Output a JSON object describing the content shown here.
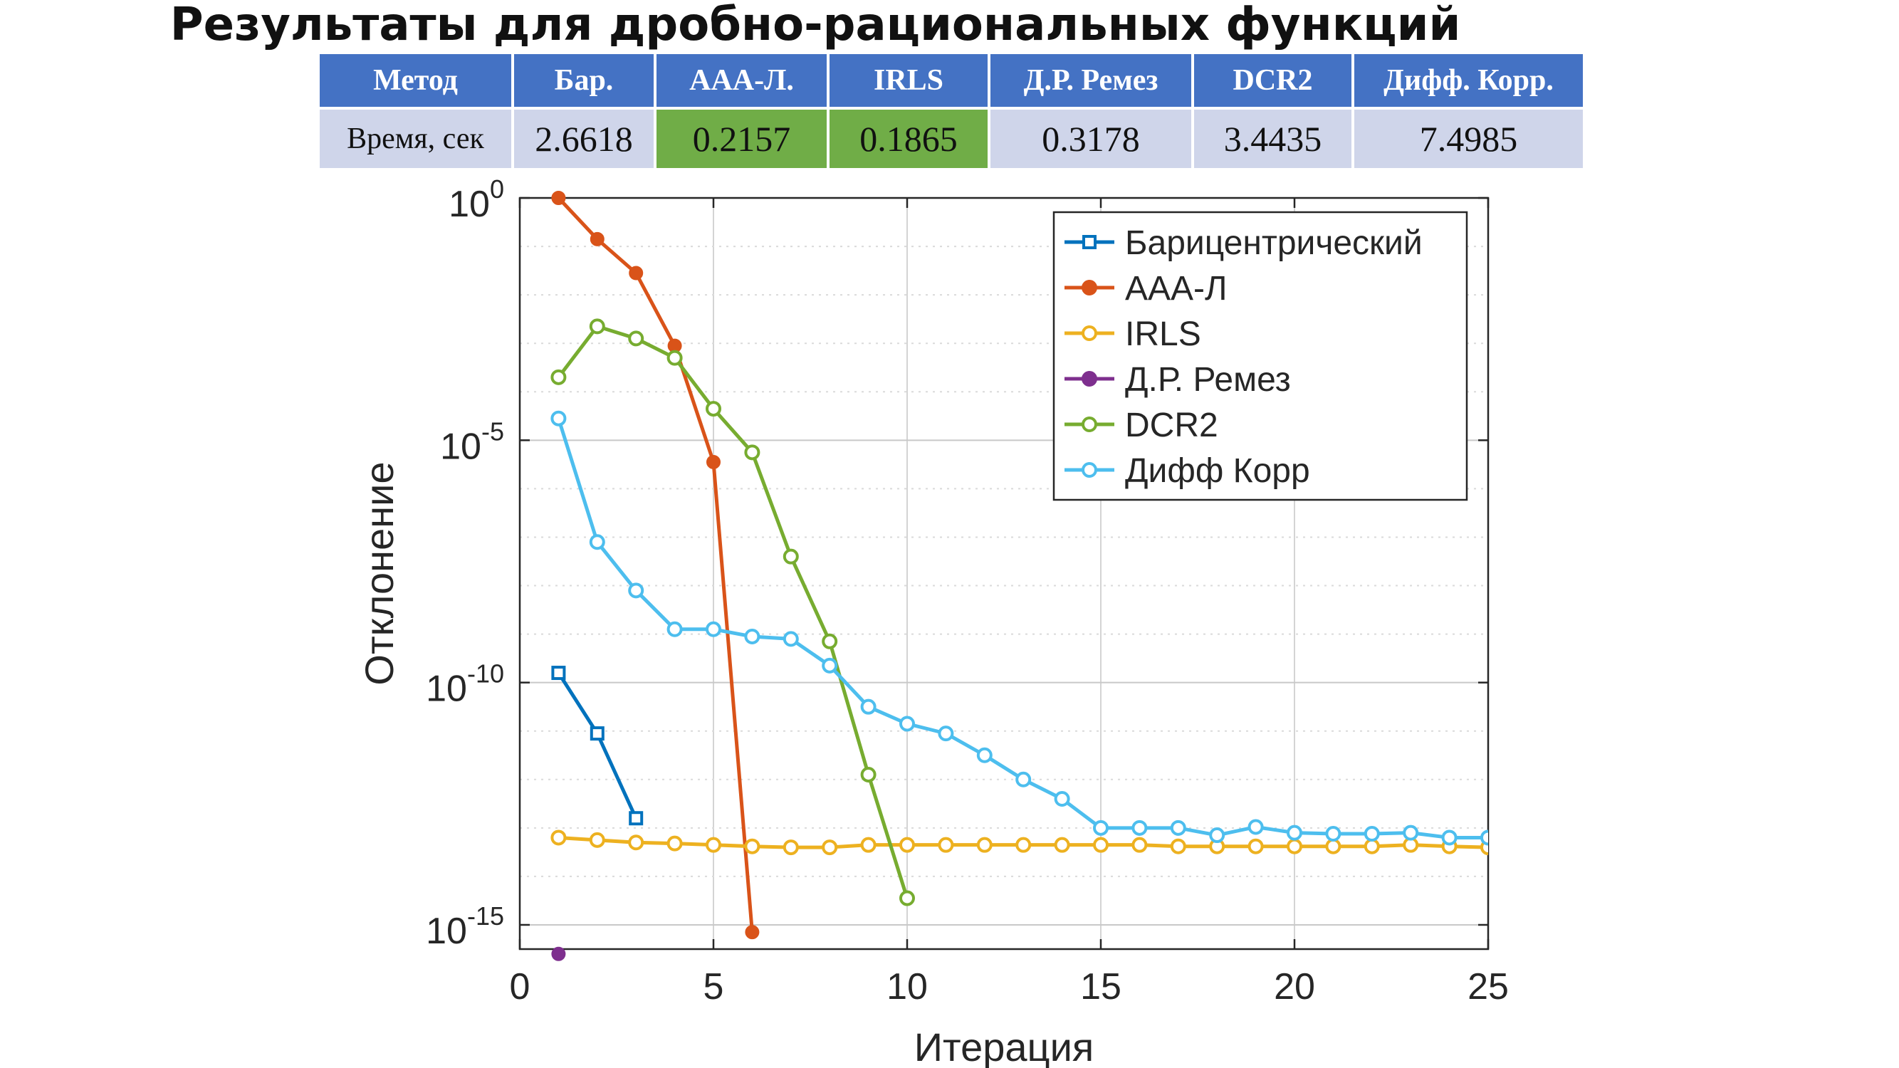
{
  "title": "Результаты для дробно-рациональных функций",
  "table": {
    "header": [
      "Метод",
      "Бар.",
      "ААА-Л.",
      "IRLS",
      "Д.Р. Ремез",
      "DCR2",
      "Дифф. Корр."
    ],
    "row_label": "Время, сек",
    "values": [
      "2.6618",
      "0.2157",
      "0.1865",
      "0.3178",
      "3.4435",
      "7.4985"
    ],
    "highlight_color": "#70ad47",
    "header_color": "#4472c4",
    "row_color": "#cfd5ea"
  },
  "chart_data": {
    "type": "line",
    "xlabel": "Итерация",
    "ylabel": "Отклонение",
    "xlim": [
      0,
      25
    ],
    "ylim_log10": [
      -15.5,
      0
    ],
    "y_scale": "log",
    "xticks": [
      0,
      5,
      10,
      15,
      20,
      25
    ],
    "yticks": [
      {
        "base": "10",
        "exp": "0"
      },
      {
        "base": "10",
        "exp": "-5"
      },
      {
        "base": "10",
        "exp": "-10"
      },
      {
        "base": "10",
        "exp": "-15"
      }
    ],
    "grid": true,
    "legend_position": "top-right",
    "series": [
      {
        "name": "Барицентрический",
        "color": "#0072bd",
        "marker": "square",
        "x": [
          1,
          2,
          3
        ],
        "log10_y": [
          -9.8,
          -11.05,
          -12.8
        ]
      },
      {
        "name": "ААА-Л",
        "color": "#d95319",
        "marker": "filled-circle",
        "x": [
          1,
          2,
          3,
          4,
          5,
          6
        ],
        "log10_y": [
          0,
          -0.85,
          -1.55,
          -3.05,
          -5.45,
          -15.15
        ]
      },
      {
        "name": "IRLS",
        "color": "#edb120",
        "marker": "circle",
        "x": [
          1,
          2,
          3,
          4,
          5,
          6,
          7,
          8,
          9,
          10,
          11,
          12,
          13,
          14,
          15,
          16,
          17,
          18,
          19,
          20,
          21,
          22,
          23,
          24,
          25
        ],
        "log10_y": [
          -13.2,
          -13.25,
          -13.3,
          -13.32,
          -13.35,
          -13.38,
          -13.4,
          -13.4,
          -13.35,
          -13.35,
          -13.35,
          -13.35,
          -13.35,
          -13.35,
          -13.35,
          -13.35,
          -13.38,
          -13.38,
          -13.38,
          -13.38,
          -13.38,
          -13.38,
          -13.35,
          -13.38,
          -13.4
        ]
      },
      {
        "name": "Д.Р. Ремез",
        "color": "#7e2f8e",
        "marker": "filled-circle",
        "x": [
          1
        ],
        "log10_y": [
          -15.6
        ]
      },
      {
        "name": "DCR2",
        "color": "#77ac30",
        "marker": "circle",
        "x": [
          1,
          2,
          3,
          4,
          5,
          6,
          7,
          8,
          9,
          10
        ],
        "log10_y": [
          -3.7,
          -2.65,
          -2.9,
          -3.3,
          -4.35,
          -5.25,
          -7.4,
          -9.15,
          -11.9,
          -14.45
        ]
      },
      {
        "name": "Дифф Корр",
        "color": "#4dbeee",
        "marker": "circle",
        "x": [
          1,
          2,
          3,
          4,
          5,
          6,
          7,
          8,
          9,
          10,
          11,
          12,
          13,
          14,
          15,
          16,
          17,
          18,
          19,
          20,
          21,
          22,
          23,
          24,
          25
        ],
        "log10_y": [
          -4.55,
          -7.1,
          -8.1,
          -8.9,
          -8.9,
          -9.05,
          -9.1,
          -9.65,
          -10.5,
          -10.85,
          -11.05,
          -11.5,
          -12.0,
          -12.4,
          -13.0,
          -13.0,
          -13.0,
          -13.15,
          -12.98,
          -13.1,
          -13.12,
          -13.12,
          -13.1,
          -13.2,
          -13.2
        ]
      }
    ]
  }
}
